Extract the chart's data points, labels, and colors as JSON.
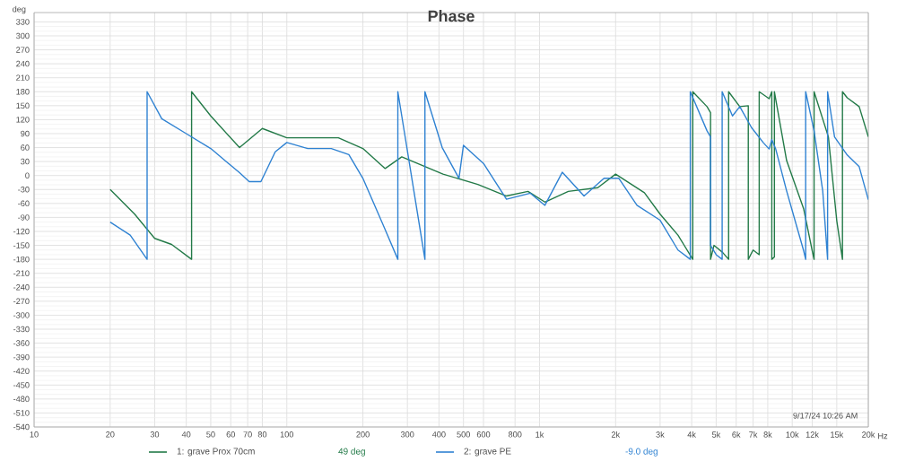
{
  "chart_data": {
    "type": "line",
    "title": "Phase",
    "ylabel": "deg",
    "annotations": [
      "9/17/24 10:26 AM",
      "49 deg",
      "-9.0 deg"
    ],
    "log": "x",
    "grid": true,
    "legend": "bottom",
    "xlim": [
      10,
      20000
    ],
    "ylim": [
      -540,
      350
    ],
    "xticks": [
      10,
      20,
      30,
      40,
      50,
      60,
      70,
      80,
      100,
      200,
      300,
      400,
      500,
      600,
      800,
      {
        "value": 1000,
        "label": "1k"
      },
      {
        "value": 2000,
        "label": "2k"
      },
      {
        "value": 3000,
        "label": "3k"
      },
      {
        "value": 4000,
        "label": "4k"
      },
      {
        "value": 5000,
        "label": "5k"
      },
      {
        "value": 6000,
        "label": "6k"
      },
      {
        "value": 7000,
        "label": "7k"
      },
      {
        "value": 8000,
        "label": "8k"
      },
      {
        "value": 10000,
        "label": "10k"
      },
      {
        "value": 12000,
        "label": "12k"
      },
      {
        "value": 15000,
        "label": "15k"
      },
      {
        "value": 20000,
        "label": "20k"
      }
    ],
    "xlabel": "Hz",
    "yticks": [
      330,
      300,
      270,
      240,
      210,
      180,
      150,
      120,
      90,
      60,
      30,
      0,
      -30,
      -60,
      -90,
      -120,
      -150,
      -180,
      -210,
      -240,
      -270,
      -300,
      -330,
      -360,
      -390,
      -420,
      -450,
      -480,
      -510,
      -540
    ],
    "series": [
      {
        "name": "1: grave Prox 70cm",
        "color": "#237a48",
        "x": [
          20,
          25,
          30,
          35,
          42,
          42,
          50,
          65,
          80,
          100,
          160,
          200,
          245,
          285,
          415,
          570,
          740,
          900,
          1050,
          1300,
          1700,
          2000,
          2600,
          3000,
          3530,
          4040,
          4040,
          4600,
          4750,
          4750,
          4900,
          5300,
          5600,
          5600,
          6200,
          6700,
          6700,
          7000,
          7400,
          7400,
          8100,
          8300,
          8300,
          8500,
          8500,
          9500,
          11100,
          12000,
          12200,
          12200,
          13900,
          15000,
          15800,
          15800,
          16500,
          18400,
          20000
        ],
        "values": [
          -30,
          -83,
          -135,
          -148,
          -180,
          180,
          128,
          60,
          101,
          81,
          81,
          58,
          15,
          40,
          3,
          -19,
          -44,
          -34,
          -57,
          -34,
          -26,
          3,
          -37,
          -83,
          -128,
          -180,
          180,
          148,
          135,
          -180,
          -150,
          -165,
          -180,
          180,
          148,
          150,
          -180,
          -160,
          -170,
          180,
          165,
          180,
          -180,
          -175,
          180,
          32,
          -72,
          -162,
          -180,
          180,
          83,
          -97,
          -180,
          180,
          167,
          148,
          83
        ]
      },
      {
        "name": "2: grave PE",
        "color": "#2f82d2",
        "x": [
          20,
          24,
          28,
          28,
          32,
          40,
          50,
          65,
          71,
          79,
          90,
          100,
          121,
          150,
          176,
          200,
          245,
          275,
          275,
          352,
          352,
          412,
          480,
          500,
          600,
          740,
          920,
          1050,
          1230,
          1500,
          1800,
          2060,
          2430,
          3000,
          3530,
          3950,
          3950,
          4600,
          4750,
          4750,
          5000,
          5280,
          5280,
          5800,
          6200,
          6900,
          7700,
          8100,
          8300,
          8600,
          9500,
          11100,
          11300,
          11300,
          12200,
          13200,
          13800,
          13800,
          14700,
          16500,
          18400,
          20000
        ],
        "values": [
          -100,
          -128,
          -180,
          180,
          122,
          90,
          58,
          6,
          -13,
          -13,
          51,
          71,
          58,
          58,
          45,
          -6,
          -116,
          -180,
          180,
          -180,
          180,
          60,
          -6,
          65,
          26,
          -51,
          -38,
          -64,
          7,
          -44,
          -6,
          -6,
          -64,
          -96,
          -160,
          -180,
          180,
          96,
          83,
          -150,
          -170,
          -180,
          180,
          128,
          148,
          103,
          70,
          57,
          77,
          57,
          -33,
          -162,
          -180,
          180,
          96,
          -33,
          -180,
          180,
          83,
          44,
          19,
          -52
        ]
      }
    ]
  }
}
